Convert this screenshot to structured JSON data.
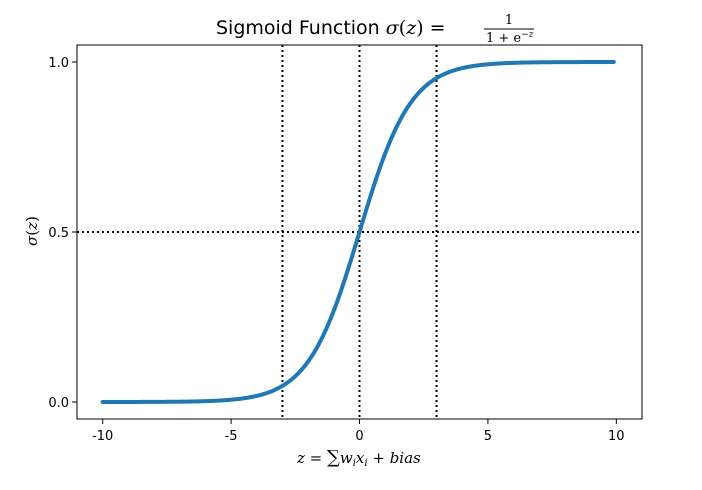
{
  "chart_data": {
    "type": "line",
    "title": {
      "prefix": "Sigmoid Function ",
      "sigma": "σ",
      "open_paren": "(",
      "z": "z",
      "close_paren_eq": ") =",
      "numerator": "1",
      "denominator_base": "1 + e",
      "denominator_exp": "−z"
    },
    "xlabel": {
      "z": "z",
      "eq": " = ",
      "sum": "∑",
      "w": "w",
      "w_sub": "i",
      "x": "x",
      "x_sub": "i",
      "plus": " + ",
      "bias": "bias"
    },
    "ylabel": {
      "sigma": "σ",
      "open_paren": "(",
      "z": "z",
      "close_paren": ")"
    },
    "xlim": [
      -11,
      11
    ],
    "ylim": [
      -0.05,
      1.05
    ],
    "x_ticks": [
      {
        "value": -10,
        "label": "-10"
      },
      {
        "value": -5,
        "label": "-5"
      },
      {
        "value": 0,
        "label": "0"
      },
      {
        "value": 5,
        "label": "5"
      },
      {
        "value": 10,
        "label": "10"
      }
    ],
    "y_ticks": [
      {
        "value": 0,
        "label": "0.0"
      },
      {
        "value": 0.5,
        "label": "0.5"
      },
      {
        "value": 1,
        "label": "1.0"
      }
    ],
    "grid": false,
    "series": [
      {
        "color": "#1f77b4",
        "function": "sigmoid",
        "x_range": [
          -10,
          9.9
        ]
      }
    ],
    "reference_lines": {
      "vertical": [
        -3,
        0,
        3
      ],
      "horizontal": [
        0.5
      ],
      "style": "dotted",
      "color": "#000000"
    }
  }
}
